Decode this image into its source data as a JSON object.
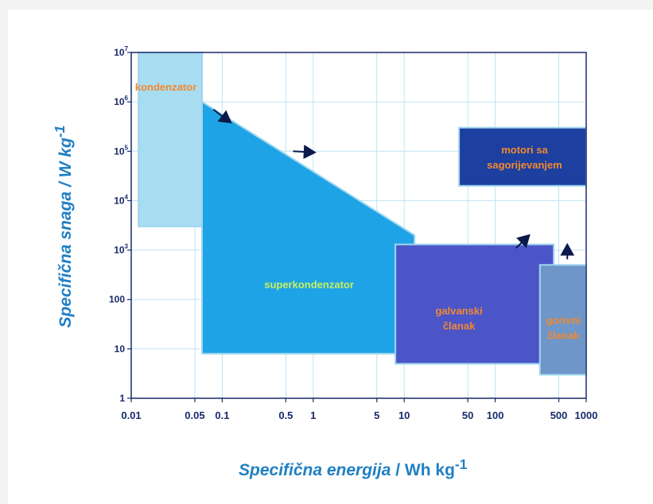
{
  "chart_data": {
    "type": "area",
    "x_axis": {
      "title_italic": "Specifična energija",
      "title_rest": " / Wh kg",
      "title_exp": "-1",
      "scale": "log",
      "range": [
        0.01,
        1000
      ],
      "ticks": [
        {
          "value": 0.01,
          "label": "0.01"
        },
        {
          "value": 0.05,
          "label": "0.05"
        },
        {
          "value": 0.1,
          "label": "0.1"
        },
        {
          "value": 0.5,
          "label": "0.5"
        },
        {
          "value": 1,
          "label": "1"
        },
        {
          "value": 5,
          "label": "5"
        },
        {
          "value": 10,
          "label": "10"
        },
        {
          "value": 50,
          "label": "50"
        },
        {
          "value": 100,
          "label": "100"
        },
        {
          "value": 500,
          "label": "500"
        },
        {
          "value": 1000,
          "label": "1000"
        }
      ]
    },
    "y_axis": {
      "title_italic": "Specifična snaga",
      "title_rest": " / W kg",
      "title_exp": "-1",
      "scale": "log",
      "range": [
        1,
        10000000
      ],
      "ticks": [
        {
          "value": 1,
          "label": "1"
        },
        {
          "value": 10,
          "label": "10"
        },
        {
          "value": 100,
          "label": "100"
        },
        {
          "value": 1000,
          "label": "10",
          "exp": "3"
        },
        {
          "value": 10000,
          "label": "10",
          "exp": "4"
        },
        {
          "value": 100000,
          "label": "10",
          "exp": "5"
        },
        {
          "value": 1000000,
          "label": "10",
          "exp": "6"
        },
        {
          "value": 10000000,
          "label": "10",
          "exp": "7"
        }
      ]
    },
    "grid": true,
    "regions": [
      {
        "name": "kondenzator",
        "label_lines": [
          "kondenzator"
        ],
        "polygon": [
          [
            0.012,
            10000000
          ],
          [
            0.06,
            10000000
          ],
          [
            0.06,
            3000
          ],
          [
            0.012,
            3000
          ]
        ],
        "fill": "#a8dcf0",
        "label_color": "#f4892f",
        "label_at": [
          0.024,
          1700000
        ],
        "label_anchor": "middle"
      },
      {
        "name": "superkondenzator",
        "label_lines": [
          "superkondenzator"
        ],
        "polygon": [
          [
            0.06,
            1000000
          ],
          [
            0.06,
            8
          ],
          [
            13,
            8
          ],
          [
            13,
            2000
          ]
        ],
        "fill": "#1ea4e6",
        "label_color": "#c8f060",
        "label_at": [
          0.9,
          170
        ],
        "label_anchor": "middle"
      },
      {
        "name": "galvanski-clanak",
        "label_lines": [
          "galvanski",
          "članak"
        ],
        "polygon": [
          [
            8,
            1300
          ],
          [
            440,
            1300
          ],
          [
            440,
            5
          ],
          [
            8,
            5
          ]
        ],
        "fill": "#4c55c8",
        "label_color": "#f4892f",
        "label_at": [
          40,
          50
        ],
        "label_anchor": "middle"
      },
      {
        "name": "gorivni-clanak",
        "label_lines": [
          "gorivni",
          "članak"
        ],
        "polygon": [
          [
            310,
            500
          ],
          [
            1000,
            500
          ],
          [
            1000,
            3
          ],
          [
            310,
            3
          ]
        ],
        "fill": "#6e96c8",
        "label_color": "#f4892f",
        "label_at": [
          560,
          32
        ],
        "label_anchor": "middle"
      },
      {
        "name": "motori-sa-sagorijevanjem",
        "label_lines": [
          "motori sa",
          "sagorijevanjem"
        ],
        "polygon": [
          [
            40,
            300000
          ],
          [
            1000,
            300000
          ],
          [
            1000,
            20000
          ],
          [
            40,
            20000
          ]
        ],
        "fill": "#1c3fa0",
        "label_color": "#f4892f",
        "label_at": [
          210,
          90000
        ],
        "label_anchor": "middle"
      }
    ],
    "arrows": [
      {
        "from": [
          0.08,
          700000
        ],
        "to": [
          0.12,
          400000
        ]
      },
      {
        "from": [
          0.6,
          100000
        ],
        "to": [
          1.0,
          95000
        ]
      },
      {
        "from": [
          170,
          1100
        ],
        "to": [
          230,
          1900
        ]
      },
      {
        "from": [
          620,
          650
        ],
        "to": [
          620,
          1200
        ]
      }
    ]
  }
}
